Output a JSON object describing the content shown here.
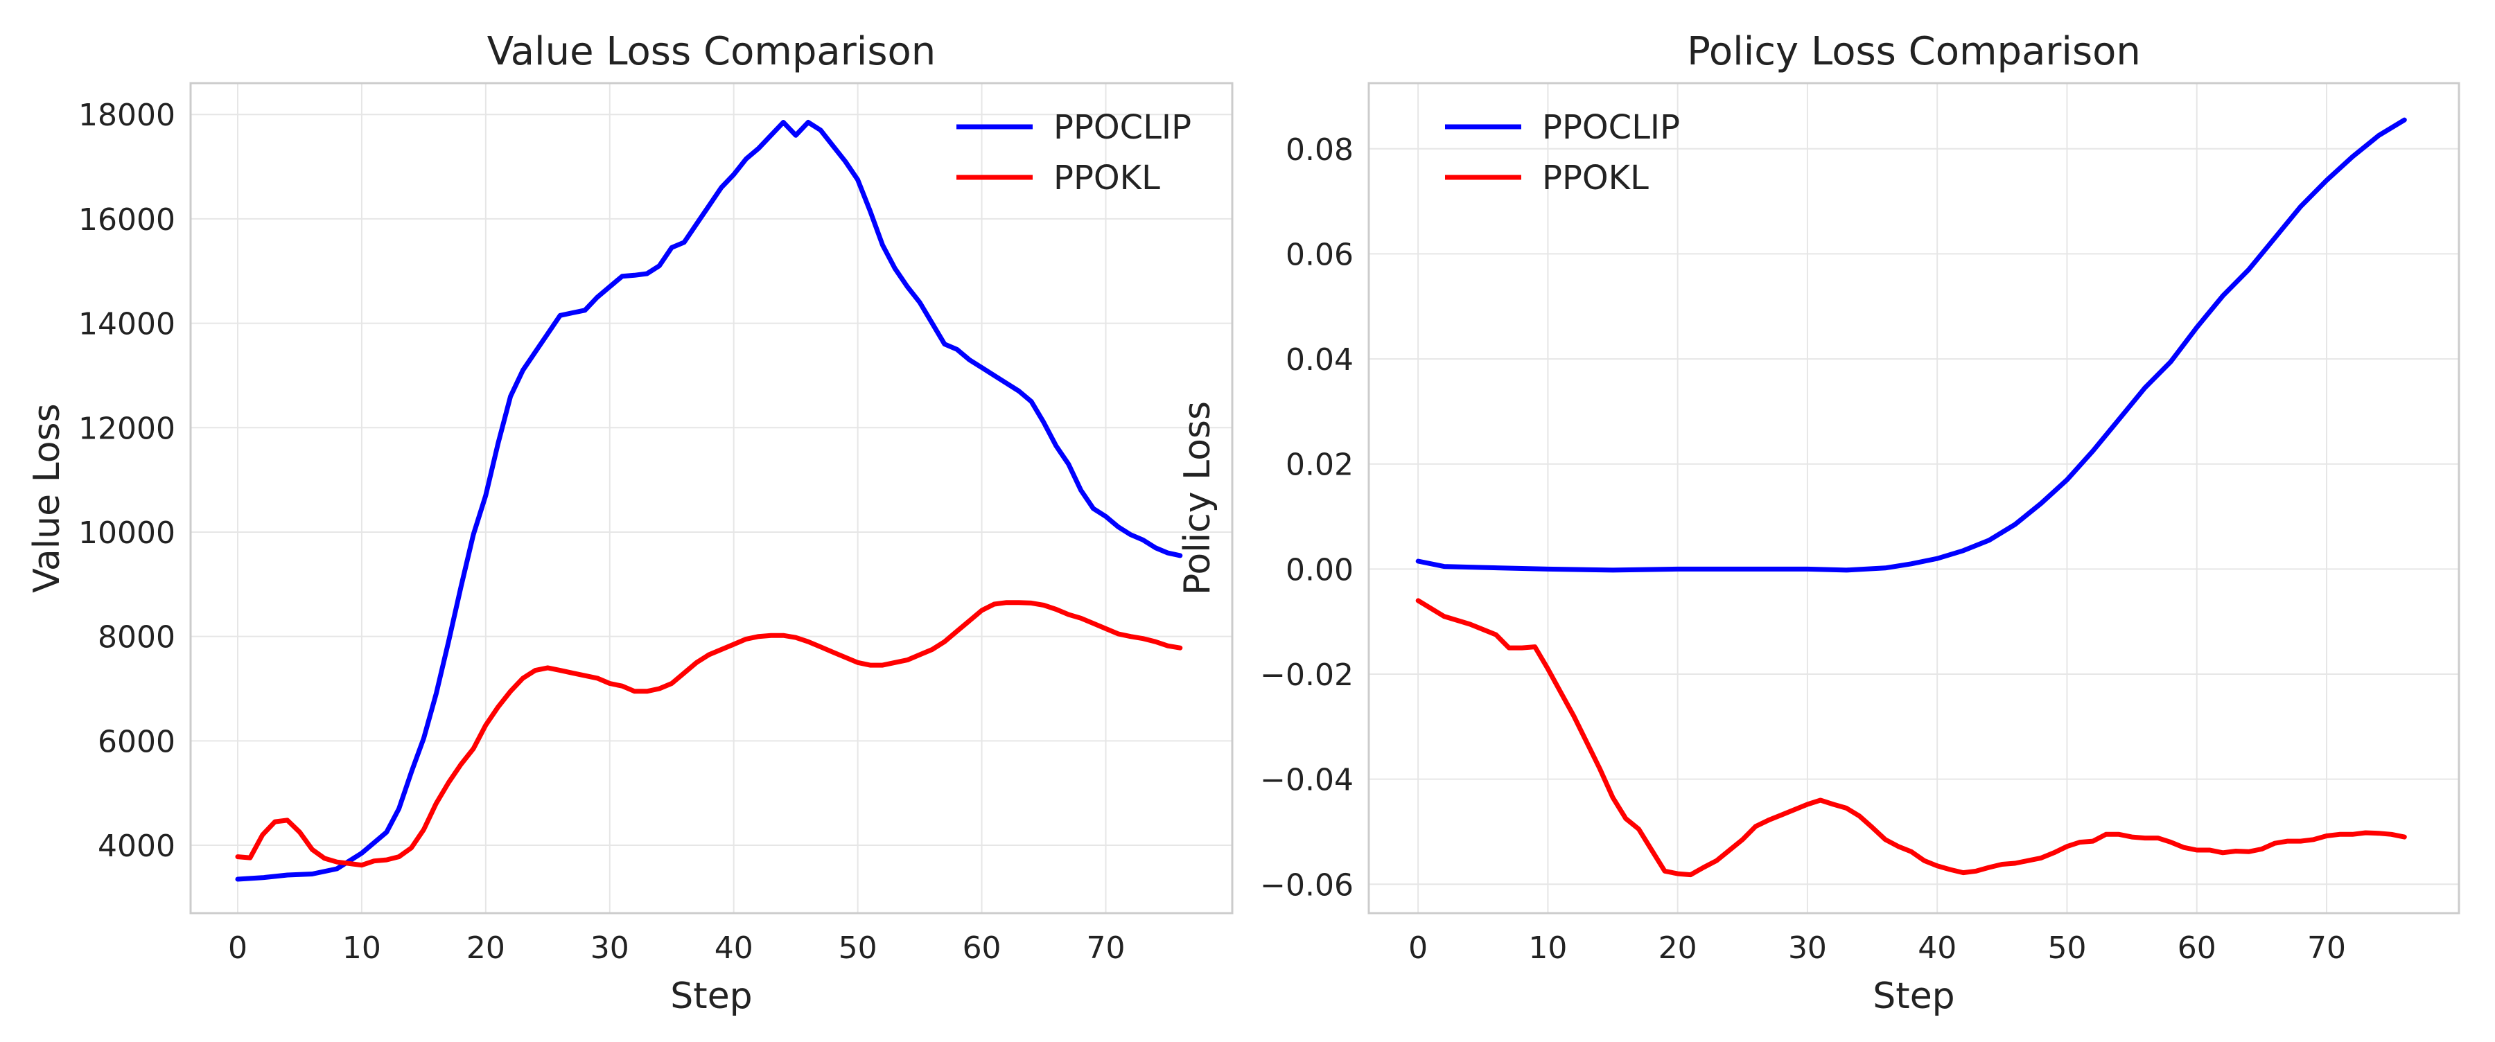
{
  "chart_data": [
    {
      "type": "line",
      "title": "Value Loss Comparison",
      "xlabel": "Step",
      "ylabel": "Value Loss",
      "xlim": [
        -3.8,
        80.2
      ],
      "ylim": [
        2700,
        18600
      ],
      "xticks": [
        0,
        10,
        20,
        30,
        40,
        50,
        60,
        70
      ],
      "yticks": [
        4000,
        6000,
        8000,
        10000,
        12000,
        14000,
        16000,
        18000
      ],
      "ytick_decimals": 0,
      "grid": true,
      "legend_position": "top-right",
      "series": [
        {
          "name": "PPOCLIP",
          "color": "#0000ff",
          "x": [
            0,
            2,
            4,
            6,
            8,
            10,
            12,
            13,
            14,
            15,
            16,
            17,
            18,
            19,
            20,
            21,
            22,
            23,
            24,
            25,
            26,
            27,
            28,
            29,
            30,
            31,
            32,
            33,
            34,
            35,
            36,
            37,
            38,
            39,
            40,
            41,
            42,
            43,
            44,
            45,
            46,
            47,
            48,
            49,
            50,
            51,
            52,
            53,
            54,
            55,
            56,
            57,
            58,
            59,
            60,
            61,
            62,
            63,
            64,
            65,
            66,
            67,
            68,
            69,
            70,
            71,
            72,
            73,
            74,
            75,
            76
          ],
          "y": [
            3350,
            3380,
            3430,
            3450,
            3550,
            3850,
            4250,
            4700,
            5400,
            6050,
            6900,
            7900,
            8950,
            9950,
            10700,
            11700,
            12600,
            13100,
            13450,
            13800,
            14150,
            14200,
            14250,
            14500,
            14700,
            14900,
            14920,
            14950,
            15100,
            15450,
            15550,
            15900,
            16250,
            16600,
            16850,
            17150,
            17350,
            17600,
            17850,
            17600,
            17850,
            17700,
            17400,
            17100,
            16750,
            16150,
            15500,
            15050,
            14700,
            14400,
            14000,
            13600,
            13500,
            13300,
            13150,
            13000,
            12850,
            12700,
            12500,
            12100,
            11650,
            11300,
            10800,
            10450,
            10300,
            10100,
            9950,
            9850,
            9700,
            9600,
            9550
          ]
        },
        {
          "name": "PPOKL",
          "color": "#ff0000",
          "x": [
            0,
            1,
            2,
            3,
            4,
            5,
            6,
            7,
            8,
            9,
            10,
            11,
            12,
            13,
            14,
            15,
            16,
            17,
            18,
            19,
            20,
            21,
            22,
            23,
            24,
            25,
            26,
            27,
            28,
            29,
            30,
            31,
            32,
            33,
            34,
            35,
            36,
            37,
            38,
            39,
            40,
            41,
            42,
            43,
            44,
            45,
            46,
            47,
            48,
            49,
            50,
            51,
            52,
            53,
            54,
            55,
            56,
            57,
            58,
            59,
            60,
            61,
            62,
            63,
            64,
            65,
            66,
            67,
            68,
            69,
            70,
            71,
            72,
            73,
            74,
            75,
            76
          ],
          "y": [
            3780,
            3760,
            4200,
            4450,
            4480,
            4250,
            3920,
            3750,
            3680,
            3650,
            3620,
            3700,
            3720,
            3780,
            3950,
            4300,
            4800,
            5200,
            5550,
            5850,
            6300,
            6650,
            6950,
            7200,
            7350,
            7400,
            7350,
            7300,
            7250,
            7200,
            7100,
            7050,
            6950,
            6950,
            7000,
            7100,
            7300,
            7500,
            7650,
            7750,
            7850,
            7950,
            8000,
            8020,
            8020,
            7980,
            7900,
            7800,
            7700,
            7600,
            7500,
            7450,
            7450,
            7500,
            7550,
            7650,
            7750,
            7900,
            8100,
            8300,
            8500,
            8620,
            8650,
            8650,
            8640,
            8600,
            8520,
            8420,
            8350,
            8250,
            8150,
            8050,
            8000,
            7960,
            7900,
            7820,
            7780
          ]
        }
      ]
    },
    {
      "type": "line",
      "title": "Policy Loss Comparison",
      "xlabel": "Step",
      "ylabel": "Policy Loss",
      "xlim": [
        -3.8,
        80.2
      ],
      "ylim": [
        -0.0655,
        0.0925
      ],
      "xticks": [
        0,
        10,
        20,
        30,
        40,
        50,
        60,
        70
      ],
      "yticks": [
        -0.06,
        -0.04,
        -0.02,
        0.0,
        0.02,
        0.04,
        0.06,
        0.08
      ],
      "ytick_decimals": 2,
      "grid": true,
      "legend_position": "top-left",
      "series": [
        {
          "name": "PPOCLIP",
          "color": "#0000ff",
          "x": [
            0,
            2,
            5,
            10,
            15,
            20,
            25,
            30,
            33,
            36,
            38,
            40,
            42,
            44,
            46,
            48,
            50,
            52,
            54,
            56,
            58,
            60,
            62,
            64,
            66,
            68,
            70,
            72,
            74,
            76
          ],
          "y": [
            0.0015,
            0.0005,
            0.0003,
            0.0,
            -0.0002,
            0.0,
            0.0,
            0.0,
            -0.0002,
            0.0002,
            0.001,
            0.002,
            0.0035,
            0.0055,
            0.0085,
            0.0125,
            0.017,
            0.0225,
            0.0285,
            0.0345,
            0.0395,
            0.046,
            0.052,
            0.057,
            0.063,
            0.069,
            0.074,
            0.0785,
            0.0825,
            0.0855
          ]
        },
        {
          "name": "PPOKL",
          "color": "#ff0000",
          "x": [
            0,
            2,
            4,
            6,
            7,
            8,
            9,
            10,
            11,
            12,
            13,
            14,
            15,
            16,
            17,
            18,
            19,
            20,
            21,
            22,
            23,
            24,
            25,
            26,
            27,
            28,
            29,
            30,
            31,
            32,
            33,
            34,
            35,
            36,
            37,
            38,
            39,
            40,
            41,
            42,
            43,
            44,
            45,
            46,
            47,
            48,
            49,
            50,
            51,
            52,
            53,
            54,
            55,
            56,
            57,
            58,
            59,
            60,
            61,
            62,
            63,
            64,
            65,
            66,
            67,
            68,
            69,
            70,
            71,
            72,
            73,
            74,
            75,
            76
          ],
          "y": [
            -0.006,
            -0.009,
            -0.0105,
            -0.0125,
            -0.015,
            -0.015,
            -0.0148,
            -0.019,
            -0.0235,
            -0.028,
            -0.033,
            -0.038,
            -0.0435,
            -0.0475,
            -0.0495,
            -0.0535,
            -0.0575,
            -0.058,
            -0.0582,
            -0.0568,
            -0.0555,
            -0.0535,
            -0.0515,
            -0.049,
            -0.0478,
            -0.0468,
            -0.0458,
            -0.0448,
            -0.044,
            -0.0448,
            -0.0455,
            -0.047,
            -0.0492,
            -0.0515,
            -0.0528,
            -0.0538,
            -0.0555,
            -0.0565,
            -0.0572,
            -0.0578,
            -0.0575,
            -0.0568,
            -0.0562,
            -0.056,
            -0.0555,
            -0.055,
            -0.054,
            -0.0528,
            -0.052,
            -0.0518,
            -0.0505,
            -0.0505,
            -0.051,
            -0.0512,
            -0.0512,
            -0.052,
            -0.053,
            -0.0535,
            -0.0535,
            -0.054,
            -0.0537,
            -0.0538,
            -0.0533,
            -0.0522,
            -0.0518,
            -0.0518,
            -0.0515,
            -0.0508,
            -0.0505,
            -0.0505,
            -0.0502,
            -0.0503,
            -0.0505,
            -0.051
          ]
        }
      ]
    }
  ]
}
